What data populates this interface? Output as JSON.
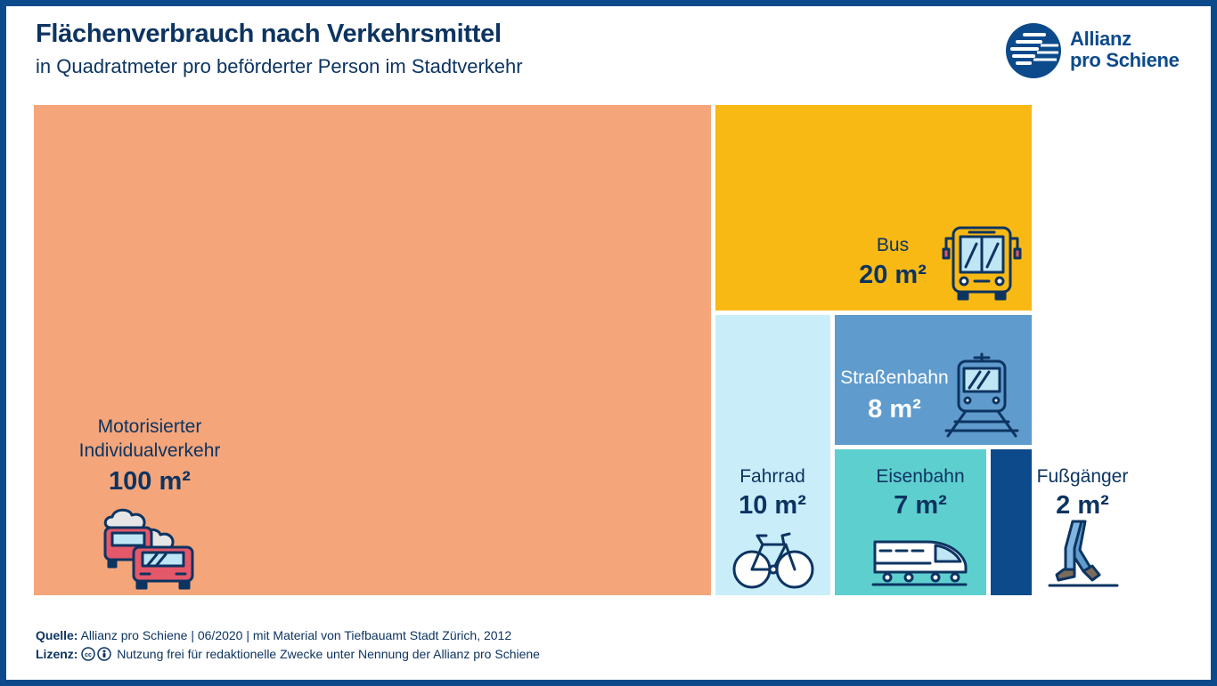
{
  "header": {
    "title": "Flächenverbrauch nach Verkehrsmittel",
    "subtitle": "in Quadratmeter pro beförderter Person im Stadtverkehr"
  },
  "logo": {
    "line1": "Allianz",
    "line2": "pro Schiene",
    "icon": "allianz-pro-schiene-logo-icon"
  },
  "chart_data": {
    "type": "treemap",
    "title": "Flächenverbrauch nach Verkehrsmittel",
    "subtitle": "in Quadratmeter pro beförderter Person im Stadtverkehr",
    "unit": "m²",
    "items": [
      {
        "label": "Motorisierter Individualverkehr",
        "value": 100,
        "value_label": "100 m²",
        "color": "#f4a57a",
        "icon": "cars-smog-icon"
      },
      {
        "label": "Bus",
        "value": 20,
        "value_label": "20 m²",
        "color": "#f9b914",
        "icon": "bus-icon"
      },
      {
        "label": "Fahrrad",
        "value": 10,
        "value_label": "10 m²",
        "color": "#c9eefa",
        "icon": "bicycle-icon"
      },
      {
        "label": "Straßenbahn",
        "value": 8,
        "value_label": "8 m²",
        "color": "#5f9bcd",
        "icon": "tram-icon"
      },
      {
        "label": "Eisenbahn",
        "value": 7,
        "value_label": "7 m²",
        "color": "#5ecfcf",
        "icon": "train-icon"
      },
      {
        "label": "Fußgänger",
        "value": 2,
        "value_label": "2 m²",
        "color": "#0d4a8c",
        "icon": "walking-legs-icon"
      }
    ]
  },
  "footer": {
    "source_label": "Quelle:",
    "source_text": "Allianz pro Schiene | 06/2020 | mit Material von Tiefbauamt Stadt Zürich, 2012",
    "license_label": "Lizenz:",
    "license_text": "Nutzung frei für redaktionelle Zwecke unter Nennung der Allianz pro Schiene",
    "license_icons": [
      "cc-icon",
      "attribution-icon"
    ]
  },
  "colors": {
    "frame": "#0d4a8c",
    "text_dark": "#0d3461"
  }
}
